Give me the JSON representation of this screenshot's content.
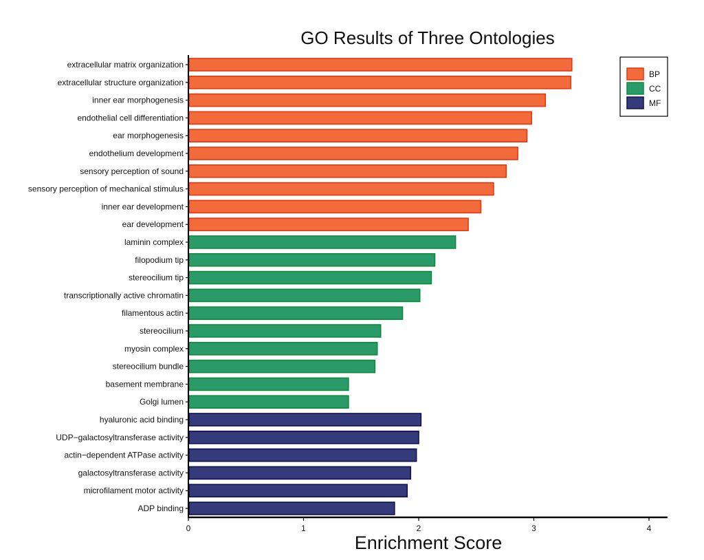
{
  "chart_data": {
    "type": "bar",
    "orientation": "horizontal",
    "title": "GO Results of Three Ontologies",
    "xlabel": "Enrichment Score",
    "ylabel": "",
    "xlim": [
      0,
      4.16
    ],
    "xticks": [
      0,
      1,
      2,
      3,
      4
    ],
    "xtick_labels": [
      "0",
      "1",
      "2",
      "3",
      "4"
    ],
    "grid": false,
    "legend": {
      "placement": "top-right",
      "entries": [
        {
          "label": "BP",
          "color": "#f26b3a",
          "edge": "#e8350f"
        },
        {
          "label": "CC",
          "color": "#2a9a68",
          "edge": "#0e8a3c"
        },
        {
          "label": "MF",
          "color": "#353a7a",
          "edge": "#10124f"
        }
      ]
    },
    "categories": [
      "extracellular matrix organization",
      "extracellular structure organization",
      "inner ear morphogenesis",
      "endothelial cell differentiation",
      "ear morphogenesis",
      "endothelium development",
      "sensory perception of sound",
      "sensory perception of mechanical stimulus",
      "inner ear development",
      "ear development",
      "laminin complex",
      "filopodium tip",
      "stereocilium tip",
      "transcriptionally active chromatin",
      "filamentous actin",
      "stereocilium",
      "myosin complex",
      "stereocilium bundle",
      "basement membrane",
      "Golgi lumen",
      "hyaluronic acid binding",
      "UDP−galactosyltransferase activity",
      "actin−dependent ATPase activity",
      "galactosyltransferase activity",
      "microfilament motor activity",
      "ADP binding"
    ],
    "values": [
      3.33,
      3.32,
      3.1,
      2.98,
      2.94,
      2.86,
      2.76,
      2.65,
      2.54,
      2.43,
      2.32,
      2.14,
      2.11,
      2.01,
      1.86,
      1.67,
      1.64,
      1.62,
      1.39,
      1.39,
      2.02,
      2.0,
      1.98,
      1.93,
      1.9,
      1.79
    ],
    "groups": [
      "BP",
      "BP",
      "BP",
      "BP",
      "BP",
      "BP",
      "BP",
      "BP",
      "BP",
      "BP",
      "CC",
      "CC",
      "CC",
      "CC",
      "CC",
      "CC",
      "CC",
      "CC",
      "CC",
      "CC",
      "MF",
      "MF",
      "MF",
      "MF",
      "MF",
      "MF"
    ]
  }
}
